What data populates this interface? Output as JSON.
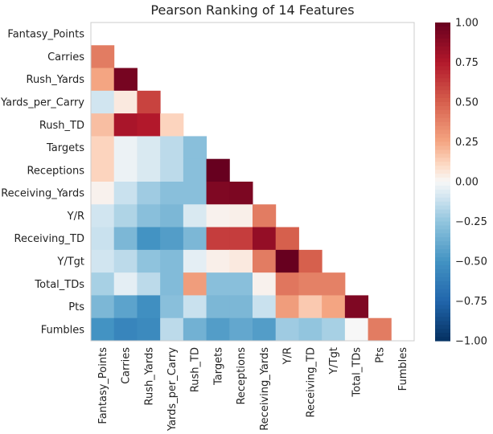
{
  "chart_data": {
    "type": "heatmap",
    "title": "Pearson Ranking of 14 Features",
    "features": [
      "Fantasy_Points",
      "Carries",
      "Rush_Yards",
      "Yards_per_Carry",
      "Rush_TD",
      "Targets",
      "Receptions",
      "Receiving_Yards",
      "Y/R",
      "Receiving_TD",
      "Y/Tgt",
      "Total_TDs",
      "Pts",
      "Fumbles"
    ],
    "matrix_lower": [
      [],
      [
        0.4
      ],
      [
        0.25,
        0.95
      ],
      [
        -0.1,
        0.05,
        0.6
      ],
      [
        0.18,
        0.78,
        0.75,
        0.12
      ],
      [
        0.12,
        -0.03,
        -0.08,
        -0.15,
        -0.28
      ],
      [
        0.12,
        -0.03,
        -0.08,
        -0.15,
        -0.28,
        1.0
      ],
      [
        0.02,
        -0.12,
        -0.22,
        -0.28,
        -0.28,
        0.92,
        0.93
      ],
      [
        -0.1,
        -0.18,
        -0.28,
        -0.32,
        -0.08,
        0.02,
        0.03,
        0.4
      ],
      [
        -0.12,
        -0.32,
        -0.5,
        -0.45,
        -0.32,
        0.62,
        0.62,
        0.85,
        0.5
      ],
      [
        -0.1,
        -0.15,
        -0.26,
        -0.3,
        -0.05,
        0.03,
        0.05,
        0.4,
        1.0,
        0.5
      ],
      [
        -0.2,
        -0.05,
        -0.15,
        -0.3,
        0.28,
        -0.28,
        -0.28,
        0.02,
        0.42,
        0.38,
        0.38
      ],
      [
        -0.32,
        -0.42,
        -0.52,
        -0.28,
        -0.12,
        -0.32,
        -0.32,
        -0.12,
        0.28,
        0.15,
        0.25,
        0.92
      ],
      [
        -0.5,
        -0.58,
        -0.55,
        -0.15,
        -0.35,
        -0.45,
        -0.4,
        -0.45,
        -0.22,
        -0.25,
        -0.2,
        0.0,
        0.4
      ]
    ],
    "colorbar": {
      "ticks": [
        "1.00",
        "0.75",
        "0.50",
        "0.25",
        "0.00",
        "−0.25",
        "−0.50",
        "−0.75",
        "−1.00"
      ],
      "range": [
        -1,
        1
      ],
      "colormap": "RdBu_r"
    }
  }
}
